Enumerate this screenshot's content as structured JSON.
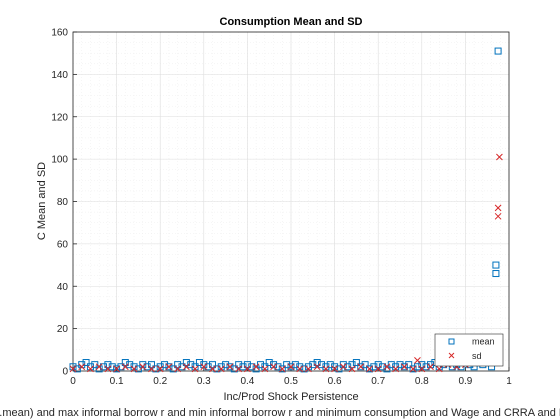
{
  "chart_data": {
    "type": "scatter",
    "title": "Consumption Mean and SD",
    "xlabel": "Inc/Prod Shock Persistence",
    "ylabel": "C Mean and SD",
    "caption": "...mean) and max informal borrow r and min informal borrow r and minimum consumption and Wage and CRRA and D",
    "xlim": [
      0,
      1
    ],
    "ylim": [
      0,
      160
    ],
    "xticks": [
      0,
      0.1,
      0.2,
      0.3,
      0.4,
      0.5,
      0.6,
      0.7,
      0.8,
      0.9,
      1
    ],
    "yticks": [
      0,
      20,
      40,
      60,
      80,
      100,
      120,
      140,
      160
    ],
    "grid": true,
    "legend_position": "bottom-right",
    "series": [
      {
        "name": "mean",
        "marker": "square",
        "color": "#0072BD",
        "x": [
          0.0,
          0.01,
          0.02,
          0.03,
          0.04,
          0.05,
          0.06,
          0.07,
          0.08,
          0.09,
          0.1,
          0.11,
          0.12,
          0.13,
          0.14,
          0.15,
          0.16,
          0.17,
          0.18,
          0.19,
          0.2,
          0.21,
          0.22,
          0.23,
          0.24,
          0.25,
          0.26,
          0.27,
          0.28,
          0.29,
          0.3,
          0.31,
          0.32,
          0.33,
          0.34,
          0.35,
          0.36,
          0.37,
          0.38,
          0.39,
          0.4,
          0.41,
          0.42,
          0.43,
          0.44,
          0.45,
          0.46,
          0.47,
          0.48,
          0.49,
          0.5,
          0.51,
          0.52,
          0.53,
          0.54,
          0.55,
          0.56,
          0.57,
          0.58,
          0.59,
          0.6,
          0.61,
          0.62,
          0.63,
          0.64,
          0.65,
          0.66,
          0.67,
          0.68,
          0.69,
          0.7,
          0.71,
          0.72,
          0.73,
          0.74,
          0.75,
          0.76,
          0.77,
          0.78,
          0.79,
          0.8,
          0.81,
          0.82,
          0.83,
          0.84,
          0.85,
          0.86,
          0.87,
          0.88,
          0.89,
          0.9,
          0.91,
          0.92,
          0.93,
          0.94,
          0.95,
          0.96,
          0.97,
          0.97,
          0.97,
          0.975
        ],
        "y": [
          2,
          1,
          3,
          4,
          2,
          3,
          1,
          2,
          3,
          2,
          1,
          2,
          4,
          3,
          2,
          1,
          3,
          2,
          3,
          1,
          2,
          3,
          2,
          1,
          3,
          2,
          4,
          3,
          2,
          4,
          3,
          2,
          3,
          1,
          2,
          3,
          2,
          1,
          3,
          2,
          3,
          2,
          1,
          3,
          2,
          4,
          3,
          2,
          1,
          3,
          2,
          3,
          2,
          1,
          2,
          3,
          4,
          3,
          2,
          3,
          2,
          1,
          3,
          2,
          3,
          4,
          2,
          3,
          1,
          2,
          3,
          2,
          1,
          3,
          2,
          3,
          2,
          3,
          1,
          2,
          3,
          2,
          3,
          4,
          2,
          3,
          4,
          2,
          3,
          2,
          4,
          3,
          2,
          4,
          3,
          5,
          2,
          4,
          46,
          50,
          151
        ]
      },
      {
        "name": "sd",
        "marker": "x",
        "color": "#D62728",
        "x": [
          0.0,
          0.02,
          0.04,
          0.06,
          0.08,
          0.1,
          0.12,
          0.14,
          0.16,
          0.18,
          0.2,
          0.22,
          0.24,
          0.26,
          0.28,
          0.3,
          0.32,
          0.34,
          0.36,
          0.38,
          0.4,
          0.42,
          0.44,
          0.46,
          0.48,
          0.5,
          0.52,
          0.54,
          0.56,
          0.58,
          0.6,
          0.62,
          0.64,
          0.66,
          0.68,
          0.7,
          0.72,
          0.74,
          0.76,
          0.78,
          0.79,
          0.8,
          0.82,
          0.84,
          0.86,
          0.87,
          0.88,
          0.89,
          0.9,
          0.91,
          0.92,
          0.93,
          0.94,
          0.95,
          0.96,
          0.97,
          0.975,
          0.975,
          0.978
        ],
        "y": [
          1,
          2,
          1,
          2,
          1,
          1,
          2,
          1,
          2,
          1,
          1,
          2,
          1,
          2,
          1,
          2,
          1,
          1,
          2,
          1,
          1,
          2,
          1,
          2,
          1,
          2,
          1,
          1,
          2,
          1,
          1,
          2,
          1,
          2,
          1,
          1,
          2,
          1,
          2,
          1,
          5,
          1,
          2,
          1,
          3,
          7,
          2,
          5,
          3,
          6,
          15,
          6,
          9,
          12,
          8,
          10,
          73,
          77,
          101
        ]
      }
    ]
  }
}
